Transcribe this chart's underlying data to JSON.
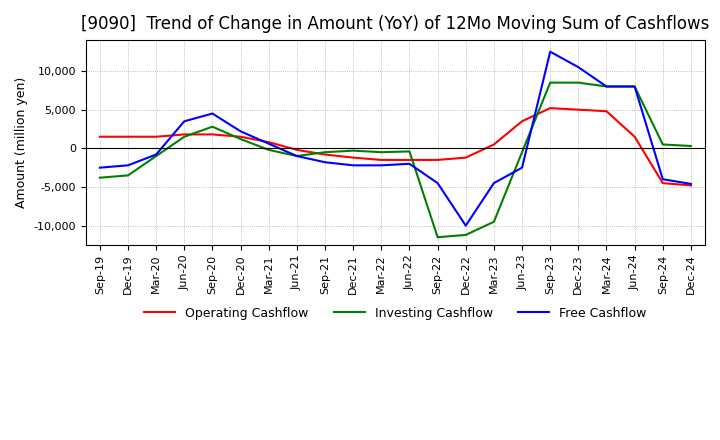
{
  "title": "[9090]  Trend of Change in Amount (YoY) of 12Mo Moving Sum of Cashflows",
  "ylabel": "Amount (million yen)",
  "ylim": [
    -12500,
    14000
  ],
  "yticks": [
    -10000,
    -5000,
    0,
    5000,
    10000
  ],
  "x_labels": [
    "Sep-19",
    "Dec-19",
    "Mar-20",
    "Jun-20",
    "Sep-20",
    "Dec-20",
    "Mar-21",
    "Jun-21",
    "Sep-21",
    "Dec-21",
    "Mar-22",
    "Jun-22",
    "Sep-22",
    "Dec-22",
    "Mar-23",
    "Jun-23",
    "Sep-23",
    "Dec-23",
    "Mar-24",
    "Jun-24",
    "Sep-24",
    "Dec-24"
  ],
  "operating": [
    1500,
    1500,
    1500,
    1800,
    1800,
    1500,
    800,
    -200,
    -800,
    -1200,
    -1500,
    -1500,
    -1500,
    -1200,
    500,
    3500,
    5200,
    5000,
    4800,
    1500,
    -4500,
    -4800
  ],
  "investing": [
    -3800,
    -3500,
    -1000,
    1500,
    2800,
    1200,
    -200,
    -1000,
    -500,
    -300,
    -500,
    -400,
    -11500,
    -11200,
    -9500,
    -500,
    8500,
    8500,
    8000,
    8000,
    500,
    300
  ],
  "free": [
    -2500,
    -2200,
    -800,
    3500,
    4500,
    2200,
    600,
    -1000,
    -1800,
    -2200,
    -2200,
    -2000,
    -4500,
    -10000,
    -4500,
    -2500,
    12500,
    10500,
    8000,
    8000,
    -4000,
    -4600
  ],
  "operating_color": "#ff0000",
  "investing_color": "#008000",
  "free_color": "#0000ff",
  "background_color": "#ffffff",
  "grid_color": "#aaaaaa",
  "title_fontsize": 12,
  "label_fontsize": 9,
  "tick_fontsize": 8
}
